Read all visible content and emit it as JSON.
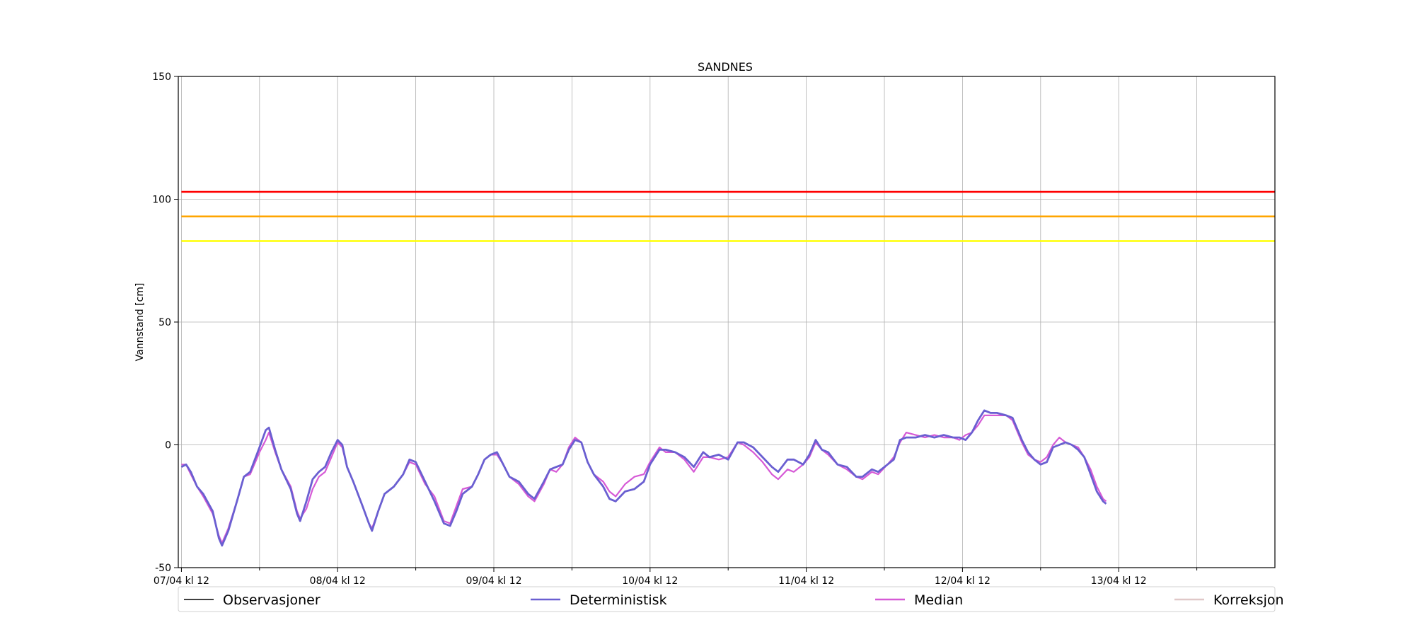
{
  "chart_data": {
    "type": "line",
    "title": "SANDNES",
    "ylabel": "Vannstand [cm]",
    "xlabel": "",
    "ylim": [
      -50,
      150
    ],
    "y_ticks": [
      -50,
      0,
      50,
      100,
      150
    ],
    "xlim": [
      -0.02,
      7.0
    ],
    "x_tick_labels": [
      {
        "x": 0,
        "label": "07/04 kl 12"
      },
      {
        "x": 1,
        "label": "08/04 kl 12"
      },
      {
        "x": 2,
        "label": "09/04 kl 12"
      },
      {
        "x": 3,
        "label": "10/04 kl 12"
      },
      {
        "x": 4,
        "label": "11/04 kl 12"
      },
      {
        "x": 5,
        "label": "12/04 kl 12"
      },
      {
        "x": 6,
        "label": "13/04 kl 12"
      }
    ],
    "x_minor_gridlines": [
      0.5,
      1.5,
      2.5,
      3.5,
      4.5,
      5.5,
      6.5
    ],
    "grid": true,
    "thresholds": [
      {
        "value": 103,
        "color": "#ff0000"
      },
      {
        "value": 93,
        "color": "#ffa500"
      },
      {
        "value": 83,
        "color": "#ffff00"
      }
    ],
    "series": [
      {
        "name": "Deterministisk",
        "color": "#6a5fd1",
        "points": [
          [
            0,
            -9
          ],
          [
            0.03,
            -8
          ],
          [
            0.06,
            -11
          ],
          [
            0.1,
            -17
          ],
          [
            0.14,
            -20
          ],
          [
            0.2,
            -27
          ],
          [
            0.24,
            -38
          ],
          [
            0.26,
            -41
          ],
          [
            0.3,
            -35
          ],
          [
            0.36,
            -22
          ],
          [
            0.4,
            -13
          ],
          [
            0.44,
            -11
          ],
          [
            0.5,
            -1
          ],
          [
            0.54,
            6
          ],
          [
            0.56,
            7
          ],
          [
            0.6,
            -2
          ],
          [
            0.64,
            -10
          ],
          [
            0.7,
            -18
          ],
          [
            0.74,
            -28
          ],
          [
            0.76,
            -31
          ],
          [
            0.8,
            -23
          ],
          [
            0.84,
            -14
          ],
          [
            0.88,
            -11
          ],
          [
            0.92,
            -9
          ],
          [
            0.96,
            -3
          ],
          [
            1.0,
            2
          ],
          [
            1.03,
            0
          ],
          [
            1.06,
            -9
          ],
          [
            1.1,
            -15
          ],
          [
            1.16,
            -25
          ],
          [
            1.2,
            -32
          ],
          [
            1.22,
            -35
          ],
          [
            1.26,
            -27
          ],
          [
            1.3,
            -20
          ],
          [
            1.36,
            -17
          ],
          [
            1.42,
            -12
          ],
          [
            1.46,
            -6
          ],
          [
            1.5,
            -7
          ],
          [
            1.56,
            -15
          ],
          [
            1.62,
            -23
          ],
          [
            1.68,
            -32
          ],
          [
            1.72,
            -33
          ],
          [
            1.76,
            -27
          ],
          [
            1.8,
            -20
          ],
          [
            1.86,
            -17
          ],
          [
            1.9,
            -12
          ],
          [
            1.94,
            -6
          ],
          [
            1.98,
            -4
          ],
          [
            2.02,
            -3
          ],
          [
            2.06,
            -8
          ],
          [
            2.1,
            -13
          ],
          [
            2.16,
            -15
          ],
          [
            2.22,
            -20
          ],
          [
            2.26,
            -22
          ],
          [
            2.32,
            -15
          ],
          [
            2.36,
            -10
          ],
          [
            2.4,
            -9
          ],
          [
            2.44,
            -8
          ],
          [
            2.48,
            -2
          ],
          [
            2.52,
            2
          ],
          [
            2.56,
            1
          ],
          [
            2.6,
            -7
          ],
          [
            2.64,
            -12
          ],
          [
            2.7,
            -17
          ],
          [
            2.74,
            -22
          ],
          [
            2.78,
            -23
          ],
          [
            2.84,
            -19
          ],
          [
            2.9,
            -18
          ],
          [
            2.96,
            -15
          ],
          [
            3.0,
            -8
          ],
          [
            3.06,
            -2
          ],
          [
            3.1,
            -2
          ],
          [
            3.16,
            -3
          ],
          [
            3.22,
            -5
          ],
          [
            3.28,
            -9
          ],
          [
            3.34,
            -3
          ],
          [
            3.38,
            -5
          ],
          [
            3.44,
            -4
          ],
          [
            3.5,
            -6
          ],
          [
            3.56,
            1
          ],
          [
            3.6,
            1
          ],
          [
            3.66,
            -1
          ],
          [
            3.72,
            -5
          ],
          [
            3.78,
            -9
          ],
          [
            3.82,
            -11
          ],
          [
            3.88,
            -6
          ],
          [
            3.92,
            -6
          ],
          [
            3.98,
            -8
          ],
          [
            4.02,
            -4
          ],
          [
            4.06,
            2
          ],
          [
            4.1,
            -2
          ],
          [
            4.14,
            -3
          ],
          [
            4.2,
            -8
          ],
          [
            4.26,
            -9
          ],
          [
            4.32,
            -13
          ],
          [
            4.36,
            -13
          ],
          [
            4.42,
            -10
          ],
          [
            4.46,
            -11
          ],
          [
            4.52,
            -8
          ],
          [
            4.56,
            -6
          ],
          [
            4.6,
            2
          ],
          [
            4.64,
            3
          ],
          [
            4.7,
            3
          ],
          [
            4.76,
            4
          ],
          [
            4.82,
            3
          ],
          [
            4.88,
            4
          ],
          [
            4.94,
            3
          ],
          [
            4.98,
            3
          ],
          [
            5.02,
            2
          ],
          [
            5.06,
            5
          ],
          [
            5.1,
            10
          ],
          [
            5.14,
            14
          ],
          [
            5.18,
            13
          ],
          [
            5.22,
            13
          ],
          [
            5.28,
            12
          ],
          [
            5.32,
            11
          ],
          [
            5.38,
            2
          ],
          [
            5.42,
            -3
          ],
          [
            5.46,
            -6
          ],
          [
            5.5,
            -8
          ],
          [
            5.54,
            -7
          ],
          [
            5.58,
            -1
          ],
          [
            5.62,
            0
          ],
          [
            5.66,
            1
          ],
          [
            5.7,
            0
          ],
          [
            5.74,
            -2
          ],
          [
            5.78,
            -5
          ],
          [
            5.82,
            -12
          ],
          [
            5.86,
            -19
          ],
          [
            5.9,
            -23
          ],
          [
            5.92,
            -24
          ]
        ]
      },
      {
        "name": "Median",
        "color": "#d65ad6",
        "points": [
          [
            0,
            -8
          ],
          [
            0.03,
            -8
          ],
          [
            0.06,
            -12
          ],
          [
            0.1,
            -17
          ],
          [
            0.14,
            -21
          ],
          [
            0.2,
            -28
          ],
          [
            0.24,
            -37
          ],
          [
            0.26,
            -40
          ],
          [
            0.3,
            -34
          ],
          [
            0.36,
            -22
          ],
          [
            0.4,
            -13
          ],
          [
            0.44,
            -12
          ],
          [
            0.5,
            -3
          ],
          [
            0.54,
            2
          ],
          [
            0.56,
            5
          ],
          [
            0.6,
            -3
          ],
          [
            0.64,
            -10
          ],
          [
            0.7,
            -17
          ],
          [
            0.74,
            -27
          ],
          [
            0.76,
            -30
          ],
          [
            0.8,
            -26
          ],
          [
            0.84,
            -18
          ],
          [
            0.88,
            -13
          ],
          [
            0.92,
            -11
          ],
          [
            0.96,
            -5
          ],
          [
            1.0,
            1
          ],
          [
            1.03,
            -1
          ],
          [
            1.06,
            -9
          ],
          [
            1.1,
            -15
          ],
          [
            1.16,
            -25
          ],
          [
            1.2,
            -32
          ],
          [
            1.22,
            -34
          ],
          [
            1.26,
            -27
          ],
          [
            1.3,
            -20
          ],
          [
            1.36,
            -17
          ],
          [
            1.42,
            -12
          ],
          [
            1.46,
            -7
          ],
          [
            1.5,
            -8
          ],
          [
            1.56,
            -16
          ],
          [
            1.62,
            -21
          ],
          [
            1.68,
            -31
          ],
          [
            1.72,
            -32
          ],
          [
            1.76,
            -25
          ],
          [
            1.8,
            -18
          ],
          [
            1.86,
            -17
          ],
          [
            1.9,
            -12
          ],
          [
            1.94,
            -6
          ],
          [
            1.98,
            -4
          ],
          [
            2.02,
            -4
          ],
          [
            2.06,
            -8
          ],
          [
            2.1,
            -13
          ],
          [
            2.16,
            -16
          ],
          [
            2.22,
            -21
          ],
          [
            2.26,
            -23
          ],
          [
            2.32,
            -16
          ],
          [
            2.36,
            -10
          ],
          [
            2.4,
            -11
          ],
          [
            2.44,
            -8
          ],
          [
            2.48,
            -1
          ],
          [
            2.52,
            3
          ],
          [
            2.56,
            1
          ],
          [
            2.6,
            -7
          ],
          [
            2.64,
            -12
          ],
          [
            2.7,
            -15
          ],
          [
            2.74,
            -19
          ],
          [
            2.78,
            -21
          ],
          [
            2.84,
            -16
          ],
          [
            2.9,
            -13
          ],
          [
            2.96,
            -12
          ],
          [
            3.0,
            -7
          ],
          [
            3.06,
            -1
          ],
          [
            3.1,
            -3
          ],
          [
            3.16,
            -3
          ],
          [
            3.22,
            -6
          ],
          [
            3.28,
            -11
          ],
          [
            3.34,
            -5
          ],
          [
            3.38,
            -5
          ],
          [
            3.44,
            -6
          ],
          [
            3.5,
            -5
          ],
          [
            3.56,
            1
          ],
          [
            3.6,
            0
          ],
          [
            3.66,
            -3
          ],
          [
            3.72,
            -7
          ],
          [
            3.78,
            -12
          ],
          [
            3.82,
            -14
          ],
          [
            3.88,
            -10
          ],
          [
            3.92,
            -11
          ],
          [
            3.98,
            -8
          ],
          [
            4.02,
            -5
          ],
          [
            4.06,
            1
          ],
          [
            4.1,
            -2
          ],
          [
            4.14,
            -4
          ],
          [
            4.2,
            -8
          ],
          [
            4.26,
            -10
          ],
          [
            4.32,
            -13
          ],
          [
            4.36,
            -14
          ],
          [
            4.42,
            -11
          ],
          [
            4.46,
            -12
          ],
          [
            4.52,
            -8
          ],
          [
            4.56,
            -5
          ],
          [
            4.6,
            1
          ],
          [
            4.64,
            5
          ],
          [
            4.7,
            4
          ],
          [
            4.76,
            3
          ],
          [
            4.82,
            4
          ],
          [
            4.88,
            3
          ],
          [
            4.94,
            3
          ],
          [
            4.98,
            2
          ],
          [
            5.02,
            4
          ],
          [
            5.06,
            5
          ],
          [
            5.1,
            8
          ],
          [
            5.14,
            12
          ],
          [
            5.18,
            12
          ],
          [
            5.22,
            12
          ],
          [
            5.28,
            12
          ],
          [
            5.32,
            10
          ],
          [
            5.38,
            1
          ],
          [
            5.42,
            -4
          ],
          [
            5.46,
            -6
          ],
          [
            5.5,
            -7
          ],
          [
            5.54,
            -5
          ],
          [
            5.58,
            0
          ],
          [
            5.62,
            3
          ],
          [
            5.66,
            1
          ],
          [
            5.7,
            0
          ],
          [
            5.74,
            -1
          ],
          [
            5.78,
            -5
          ],
          [
            5.82,
            -10
          ],
          [
            5.86,
            -17
          ],
          [
            5.9,
            -22
          ],
          [
            5.92,
            -23
          ]
        ]
      },
      {
        "name": "Observasjoner",
        "color": "#000000",
        "points": []
      },
      {
        "name": "Korreksjon",
        "color": "#e0c8c8",
        "points": []
      }
    ],
    "legend": {
      "placement": "bottom",
      "entries": [
        {
          "label": "Observasjoner",
          "color": "#000000"
        },
        {
          "label": "Deterministisk",
          "color": "#6a5fd1"
        },
        {
          "label": "Median",
          "color": "#d65ad6"
        },
        {
          "label": "Korreksjon",
          "color": "#e0c8c8"
        }
      ]
    }
  }
}
